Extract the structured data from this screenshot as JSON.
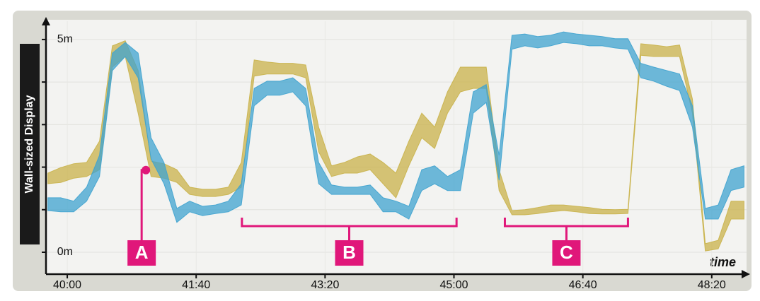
{
  "chart_data": {
    "type": "band",
    "y_axis_label": "Wall-sized Display",
    "x_axis_label": "time",
    "xlim": [
      2383.5,
      2927
    ],
    "ylim": [
      -0.515,
      5.43
    ],
    "xticks": [
      {
        "value": 2400,
        "label": "40:00"
      },
      {
        "value": 2500,
        "label": "41:40"
      },
      {
        "value": 2600,
        "label": "43:20"
      },
      {
        "value": 2700,
        "label": "45:00"
      },
      {
        "value": 2800,
        "label": "46:40"
      },
      {
        "value": 2900,
        "label": "48:20"
      }
    ],
    "yticks": [
      {
        "value": 0,
        "label": "0m"
      },
      {
        "value": 5,
        "label": "5m"
      }
    ],
    "yminorticks": [
      1,
      2,
      3,
      4
    ],
    "grid": true,
    "x": [
      2385,
      2395,
      2405,
      2415,
      2425,
      2435,
      2445,
      2455,
      2465,
      2475,
      2485,
      2495,
      2505,
      2515,
      2525,
      2535,
      2545,
      2555,
      2565,
      2575,
      2585,
      2595,
      2605,
      2615,
      2625,
      2635,
      2645,
      2655,
      2665,
      2675,
      2685,
      2695,
      2705,
      2715,
      2725,
      2735,
      2745,
      2755,
      2765,
      2775,
      2785,
      2795,
      2805,
      2815,
      2825,
      2835,
      2845,
      2855,
      2865,
      2875,
      2885,
      2895,
      2905,
      2915,
      2925
    ],
    "series": [
      {
        "color": "#c9b24a",
        "low": [
          1.61,
          1.64,
          1.74,
          1.78,
          1.94,
          4.35,
          4.6,
          3.27,
          1.78,
          1.74,
          1.64,
          1.36,
          1.31,
          1.31,
          1.36,
          1.53,
          4.14,
          4.19,
          4.19,
          4.19,
          4.1,
          2.36,
          1.78,
          1.86,
          1.86,
          1.94,
          1.61,
          1.28,
          2.03,
          2.69,
          2.44,
          3.27,
          3.77,
          3.85,
          3.85,
          1.45,
          0.88,
          0.88,
          0.91,
          0.95,
          0.98,
          0.95,
          0.91,
          0.9,
          0.9,
          0.91,
          4.63,
          4.6,
          4.6,
          4.6,
          3.27,
          0.03,
          0.08,
          0.78,
          0.78
        ],
        "high": [
          1.86,
          1.99,
          2.08,
          2.11,
          2.61,
          4.85,
          4.97,
          4.27,
          2.14,
          2.08,
          1.94,
          1.53,
          1.48,
          1.48,
          1.53,
          2.11,
          4.52,
          4.47,
          4.44,
          4.44,
          4.4,
          2.94,
          2.03,
          2.11,
          2.24,
          2.31,
          2.11,
          1.86,
          2.61,
          3.27,
          2.94,
          3.77,
          4.35,
          4.35,
          4.35,
          1.94,
          0.98,
          1.0,
          1.05,
          1.11,
          1.11,
          1.08,
          1.05,
          1.01,
          1.0,
          1.01,
          4.9,
          4.87,
          4.83,
          4.87,
          3.6,
          0.2,
          0.28,
          1.2,
          1.2
        ]
      },
      {
        "color": "#3fa3cf",
        "low": [
          0.98,
          0.95,
          0.95,
          1.2,
          1.78,
          4.27,
          4.6,
          4.1,
          2.19,
          1.61,
          0.7,
          0.95,
          0.86,
          0.91,
          0.95,
          1.11,
          3.44,
          3.69,
          3.69,
          3.77,
          3.44,
          1.61,
          1.36,
          1.36,
          1.36,
          1.36,
          0.95,
          0.95,
          0.78,
          1.45,
          1.61,
          1.45,
          1.45,
          3.27,
          3.52,
          1.69,
          4.77,
          4.85,
          4.8,
          4.85,
          4.93,
          4.9,
          4.85,
          4.85,
          4.8,
          4.77,
          4.1,
          4.02,
          3.9,
          3.8,
          2.94,
          0.78,
          0.78,
          1.45,
          1.53
        ],
        "high": [
          1.28,
          1.28,
          1.2,
          1.53,
          2.28,
          4.68,
          4.93,
          4.68,
          2.69,
          2.11,
          1.03,
          1.2,
          1.08,
          1.11,
          1.2,
          1.61,
          3.85,
          4.02,
          4.02,
          4.1,
          3.85,
          2.11,
          1.58,
          1.53,
          1.53,
          1.58,
          1.28,
          1.2,
          1.08,
          1.94,
          2.03,
          1.78,
          1.94,
          3.77,
          3.94,
          2.28,
          5.1,
          5.13,
          5.07,
          5.1,
          5.18,
          5.13,
          5.1,
          5.07,
          5.02,
          5.02,
          4.44,
          4.35,
          4.27,
          4.19,
          3.44,
          1.03,
          1.11,
          1.94,
          2.03
        ]
      }
    ],
    "annotations": [
      {
        "label": "A",
        "x": 2461,
        "y": 1.93
      },
      {
        "label": "B",
        "x": [
          2535.5,
          2702
        ]
      },
      {
        "label": "C",
        "x": [
          2739.5,
          2835
        ]
      }
    ]
  }
}
